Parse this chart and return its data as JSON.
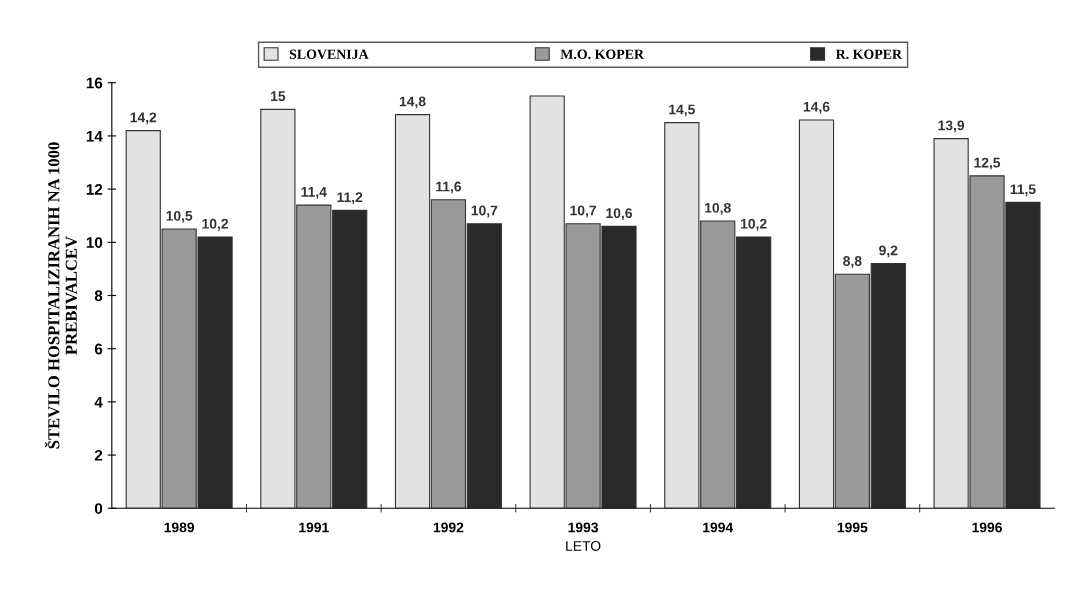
{
  "chart_data": {
    "type": "bar",
    "xlabel": "LETO",
    "ylabel": "ŠTEVILO HOSPITALIZIRANIH NA 1000\nPREBIVALCEV",
    "categories": [
      "1989",
      "1991",
      "1992",
      "1993",
      "1994",
      "1995",
      "1996"
    ],
    "series": [
      {
        "name": "SLOVENIJA",
        "color": "#e2e2e2",
        "values": [
          14.2,
          15,
          14.8,
          15.5,
          14.5,
          14.6,
          13.9
        ],
        "value_labels": [
          "14,2",
          "15",
          "14,8",
          null,
          "14,5",
          "14,6",
          "13,9"
        ]
      },
      {
        "name": "M.O. KOPER",
        "color": "#9a9a9a",
        "values": [
          10.5,
          11.4,
          11.6,
          10.7,
          10.8,
          8.8,
          12.5
        ],
        "value_labels": [
          "10,5",
          "11,4",
          "11,6",
          "10,7",
          "10,8",
          "8,8",
          "12,5"
        ]
      },
      {
        "name": "R. KOPER",
        "color": "#2a2a2a",
        "values": [
          10.2,
          11.2,
          10.7,
          10.6,
          10.2,
          9.2,
          11.5
        ],
        "value_labels": [
          "10,2",
          "11,2",
          "10,7",
          "10,6",
          "10,2",
          "9,2",
          "11,5"
        ]
      }
    ],
    "ylim": [
      0,
      16
    ],
    "yticks": [
      0,
      2,
      4,
      6,
      8,
      10,
      12,
      14,
      16
    ],
    "grid": false,
    "legend": "top"
  }
}
